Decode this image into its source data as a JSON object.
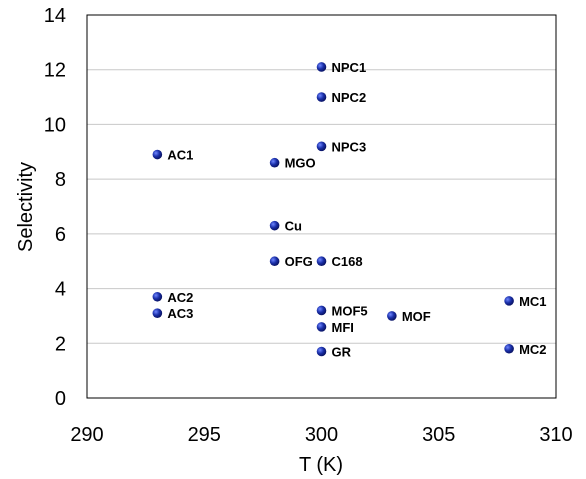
{
  "chart_data": {
    "type": "scatter",
    "title": "",
    "xlabel": "T (K)",
    "ylabel": "Selectivity",
    "xlim": [
      290,
      310
    ],
    "ylim": [
      0,
      14
    ],
    "xticks": [
      290,
      295,
      300,
      305,
      310
    ],
    "yticks": [
      0,
      2,
      4,
      6,
      8,
      10,
      12,
      14
    ],
    "grid": "horizontal",
    "legend": "none",
    "marker_color": "#1a2fa8",
    "points": [
      {
        "label": "NPC1",
        "x": 300,
        "y": 12.1
      },
      {
        "label": "NPC2",
        "x": 300,
        "y": 11.0
      },
      {
        "label": "NPC3",
        "x": 300,
        "y": 9.2
      },
      {
        "label": "AC1",
        "x": 293,
        "y": 8.9
      },
      {
        "label": "MGO",
        "x": 298,
        "y": 8.6
      },
      {
        "label": "Cu",
        "x": 298,
        "y": 6.3
      },
      {
        "label": "OFG",
        "x": 298,
        "y": 5.0
      },
      {
        "label": "C168",
        "x": 300,
        "y": 5.0
      },
      {
        "label": "AC2",
        "x": 293,
        "y": 3.7
      },
      {
        "label": "AC3",
        "x": 293,
        "y": 3.1
      },
      {
        "label": "MOF5",
        "x": 300,
        "y": 3.2
      },
      {
        "label": "MFI",
        "x": 300,
        "y": 2.6
      },
      {
        "label": "MOF",
        "x": 303,
        "y": 3.0
      },
      {
        "label": "MC1",
        "x": 308,
        "y": 3.55
      },
      {
        "label": "MC2",
        "x": 308,
        "y": 1.8
      },
      {
        "label": "GR",
        "x": 300,
        "y": 1.7
      }
    ]
  }
}
